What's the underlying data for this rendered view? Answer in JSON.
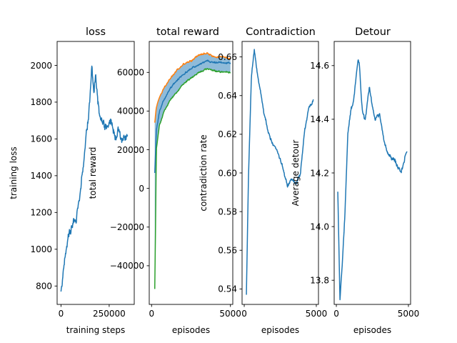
{
  "chart_data": [
    {
      "type": "line",
      "title": "loss",
      "xlabel": "training steps",
      "ylabel": "training loss",
      "xlim": [
        -20000,
        380000
      ],
      "ylim": [
        700,
        2130
      ],
      "xticks": [
        {
          "value": 0,
          "label": "0"
        },
        {
          "value": 250000,
          "label": "250000"
        }
      ],
      "yticks": [
        {
          "value": 800,
          "label": "800"
        },
        {
          "value": 1000,
          "label": "1000"
        },
        {
          "value": 1200,
          "label": "1200"
        },
        {
          "value": 1400,
          "label": "1400"
        },
        {
          "value": 1600,
          "label": "1600"
        },
        {
          "value": 1800,
          "label": "1800"
        },
        {
          "value": 2000,
          "label": "2000"
        }
      ],
      "colors": {
        "main": "#1f77b4"
      },
      "series": [
        {
          "noise": 28,
          "x": [
            0,
            20000,
            40000,
            60000,
            80000,
            100000,
            110000,
            130000,
            150000,
            160000,
            170000,
            180000,
            200000,
            220000,
            240000,
            260000,
            280000,
            300000,
            320000,
            345000
          ],
          "y": [
            770,
            950,
            1080,
            1130,
            1180,
            1300,
            1400,
            1600,
            1800,
            2000,
            1850,
            1950,
            1720,
            1700,
            1650,
            1720,
            1600,
            1640,
            1580,
            1620
          ]
        }
      ]
    },
    {
      "type": "line",
      "title": "total reward",
      "xlabel": "episodes",
      "ylabel": "total reward",
      "xlim": [
        -150,
        5150
      ],
      "ylim": [
        -60000,
        76000
      ],
      "xticks": [
        {
          "value": 0,
          "label": "0"
        },
        {
          "value": 5000,
          "label": "5000"
        }
      ],
      "yticks": [
        {
          "value": -40000,
          "label": "−40000"
        },
        {
          "value": -20000,
          "label": "−20000"
        },
        {
          "value": 0,
          "label": "0"
        },
        {
          "value": 20000,
          "label": "20000"
        },
        {
          "value": 40000,
          "label": "40000"
        },
        {
          "value": 60000,
          "label": "60000"
        }
      ],
      "colors": {
        "band": "#1f77b4"
      },
      "band": {
        "lower_series": 2,
        "upper_series": 0,
        "color": "#1f77b4",
        "opacity": 0.5
      },
      "series": [
        {
          "color": "#ff7f0e",
          "noise": 500,
          "x": [
            200,
            300,
            500,
            800,
            1200,
            1600,
            2000,
            2500,
            3000,
            3500,
            4000,
            4500,
            5000
          ],
          "y": [
            34000,
            42000,
            47000,
            52000,
            57000,
            61000,
            64000,
            66000,
            69000,
            70000,
            68000,
            68000,
            67000
          ]
        },
        {
          "color": "#1f77b4",
          "noise": 500,
          "x": [
            200,
            300,
            500,
            800,
            1200,
            1600,
            2000,
            2500,
            3000,
            3500,
            4000,
            4500,
            5000
          ],
          "y": [
            8000,
            30000,
            40000,
            46000,
            52000,
            56000,
            59000,
            62000,
            64000,
            66000,
            65000,
            65000,
            65000
          ]
        },
        {
          "color": "#2ca02c",
          "noise": 500,
          "x": [
            200,
            250,
            300,
            500,
            800,
            1200,
            1600,
            2000,
            2500,
            3000,
            3500,
            4000,
            4500,
            5000
          ],
          "y": [
            -52000,
            -20000,
            20000,
            33000,
            40000,
            46000,
            50000,
            54000,
            57000,
            60000,
            62000,
            61000,
            60000,
            60000
          ]
        }
      ]
    },
    {
      "type": "line",
      "title": "Contradiction",
      "xlabel": "episodes",
      "ylabel": "contradiction rate",
      "xlim": [
        -150,
        5150
      ],
      "ylim": [
        0.532,
        0.668
      ],
      "xticks": [
        {
          "value": 0,
          "label": "0"
        },
        {
          "value": 5000,
          "label": "5000"
        }
      ],
      "yticks": [
        {
          "value": 0.54,
          "label": "0.54"
        },
        {
          "value": 0.56,
          "label": "0.56"
        },
        {
          "value": 0.58,
          "label": "0.58"
        },
        {
          "value": 0.6,
          "label": "0.60"
        },
        {
          "value": 0.62,
          "label": "0.62"
        },
        {
          "value": 0.64,
          "label": "0.64"
        },
        {
          "value": 0.66,
          "label": "0.66"
        }
      ],
      "colors": {
        "main": "#1f77b4"
      },
      "series": [
        {
          "noise": 0.001,
          "x": [
            150,
            300,
            500,
            700,
            850,
            1100,
            1400,
            1700,
            2000,
            2200,
            2600,
            3000,
            3300,
            3600,
            3900,
            4200,
            4500,
            4700,
            4800
          ],
          "y": [
            0.537,
            0.6,
            0.65,
            0.663,
            0.655,
            0.643,
            0.63,
            0.62,
            0.615,
            0.613,
            0.605,
            0.593,
            0.597,
            0.594,
            0.6,
            0.622,
            0.635,
            0.635,
            0.638
          ]
        }
      ]
    },
    {
      "type": "line",
      "title": "Detour",
      "xlabel": "episodes",
      "ylabel": "Average detour",
      "xlim": [
        -150,
        5150
      ],
      "ylim": [
        13.71,
        14.69
      ],
      "xticks": [
        {
          "value": 0,
          "label": "0"
        },
        {
          "value": 5000,
          "label": "5000"
        }
      ],
      "yticks": [
        {
          "value": 13.8,
          "label": "13.8"
        },
        {
          "value": 14.0,
          "label": "14.0"
        },
        {
          "value": 14.2,
          "label": "14.2"
        },
        {
          "value": 14.4,
          "label": "14.4"
        },
        {
          "value": 14.6,
          "label": "14.6"
        }
      ],
      "colors": {
        "main": "#1f77b4"
      },
      "series": [
        {
          "noise": 0.008,
          "x": [
            100,
            250,
            400,
            600,
            800,
            1000,
            1200,
            1500,
            1600,
            1800,
            2000,
            2300,
            2500,
            2700,
            3000,
            3300,
            3600,
            4000,
            4300,
            4500,
            4800,
            4900
          ],
          "y": [
            14.13,
            13.73,
            13.85,
            14.05,
            14.35,
            14.43,
            14.47,
            14.62,
            14.6,
            14.43,
            14.4,
            14.52,
            14.45,
            14.4,
            14.42,
            14.32,
            14.27,
            14.25,
            14.22,
            14.2,
            14.27,
            14.28
          ]
        }
      ]
    }
  ]
}
